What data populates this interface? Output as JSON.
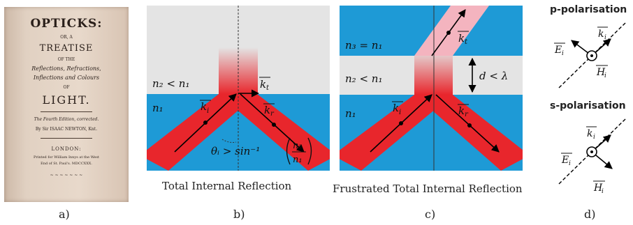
{
  "captions": {
    "a": "a)",
    "b": "b)",
    "c": "c)",
    "d": "d)",
    "b_title": "Total Internal Reflection",
    "c_title": "Frustrated Total Internal Reflection"
  },
  "book": {
    "title": "OPTICKS:",
    "or": "OR, A",
    "treatise": "TREATISE",
    "of_the": "OF THE",
    "line1": "Reflections, Refractions,",
    "line2": "Inflections and Colours",
    "of": "OF",
    "light": "LIGHT.",
    "edition": "The Fourth Edition, corrected.",
    "author": "By Sir ISAAC NEWTON, Knt.",
    "london": "LONDON:",
    "printer1": "Printed for William Innys at the West",
    "printer2": "End of St. Paul's. MDCCXXX.",
    "footer": "~ ~ ~ ~ ~ ~ ~"
  },
  "panel_b": {
    "medium_top": "n₂ < n₁",
    "medium_bottom": "n₁",
    "k_t": "k",
    "k_t_sub": "t",
    "k_i": "k",
    "k_i_sub": "i",
    "k_r": "k",
    "k_r_sub": "r",
    "condition": "θᵢ > sin⁻¹",
    "frac_num": "n₂",
    "frac_den": "n₁"
  },
  "panel_c": {
    "medium_top": "n₃ = n₁",
    "medium_mid": "n₂ < n₁",
    "medium_bottom": "n₁",
    "gap": "d < λ",
    "k_t": "k",
    "k_t_sub": "t",
    "k_i": "k",
    "k_i_sub": "i",
    "k_r": "k",
    "k_r_sub": "r"
  },
  "panel_d": {
    "p_title": "p-polarisation",
    "s_title": "s-polarisation",
    "k": "k",
    "k_sub": "i",
    "E": "E",
    "E_sub": "i",
    "H": "H",
    "H_sub": "i"
  },
  "colors": {
    "blue": "#1e9ad6",
    "grey": "#e4e4e4",
    "red": "#e8262c",
    "pink": "#f4b4bf"
  }
}
